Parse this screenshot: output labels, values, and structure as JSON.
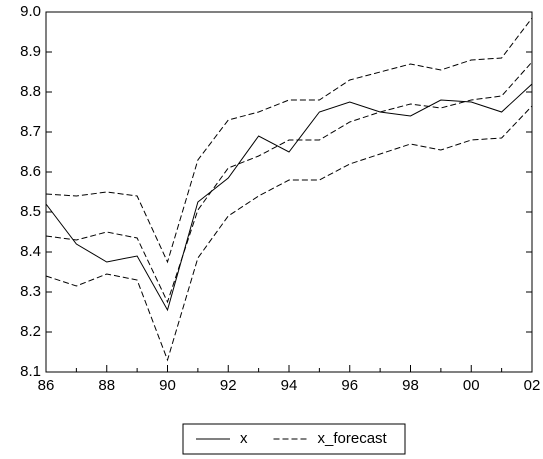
{
  "chart_data": {
    "type": "line",
    "categories": [
      "86",
      null,
      "88",
      null,
      "90",
      null,
      "92",
      null,
      "94",
      null,
      "96",
      null,
      "98",
      null,
      "00",
      null,
      "02"
    ],
    "series": [
      {
        "name": "x",
        "color": "#000000",
        "dash": "solid",
        "values": [
          8.52,
          8.42,
          8.375,
          8.39,
          8.255,
          8.525,
          8.585,
          8.69,
          8.65,
          8.75,
          8.775,
          8.75,
          8.74,
          8.78,
          8.775,
          8.75,
          8.82
        ]
      },
      {
        "name": "x_forecast",
        "color": "#000000",
        "dash": "dashed",
        "values": [
          8.44,
          8.43,
          8.45,
          8.435,
          8.275,
          8.505,
          8.61,
          8.64,
          8.68,
          8.68,
          8.725,
          8.75,
          8.77,
          8.76,
          8.78,
          8.79,
          8.875
        ]
      },
      {
        "color": "#000000",
        "dash": "dashed",
        "values": [
          8.545,
          8.54,
          8.55,
          8.54,
          8.375,
          8.63,
          8.73,
          8.75,
          8.78,
          8.78,
          8.83,
          8.85,
          8.87,
          8.855,
          8.88,
          8.885,
          8.985
        ]
      },
      {
        "color": "#000000",
        "dash": "dashed",
        "values": [
          8.34,
          8.315,
          8.345,
          8.33,
          8.13,
          8.385,
          8.49,
          8.54,
          8.58,
          8.58,
          8.62,
          8.645,
          8.67,
          8.655,
          8.68,
          8.685,
          8.765
        ]
      }
    ],
    "ylim": [
      8.1,
      9.0
    ],
    "yticks": [
      8.1,
      8.2,
      8.3,
      8.4,
      8.5,
      8.6,
      8.7,
      8.8,
      8.9,
      {
        "value": 9.0,
        "label": "9.0"
      }
    ],
    "legend": "bottom"
  }
}
